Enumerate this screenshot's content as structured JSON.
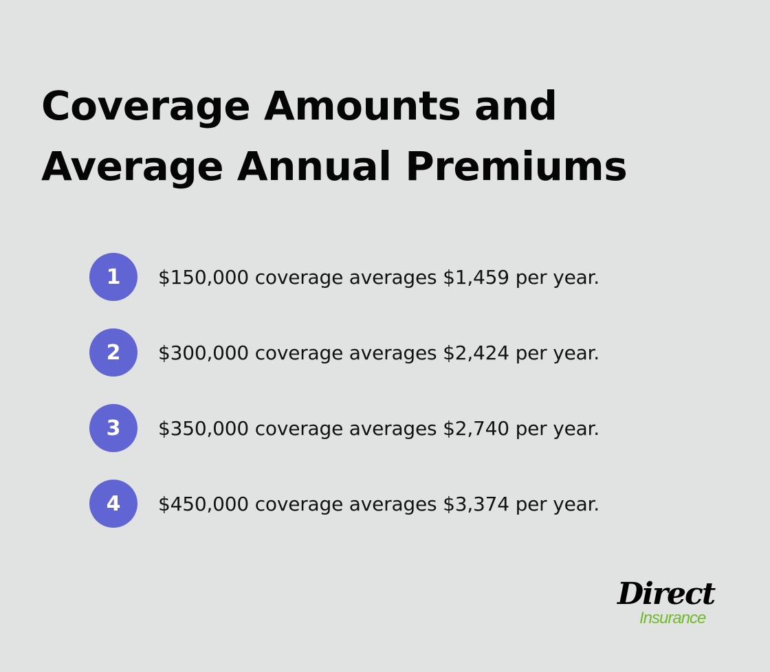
{
  "header": {
    "title": "Coverage Amounts and Average Annual Premiums"
  },
  "items": [
    {
      "number": "1",
      "text": "$150,000 coverage averages $1,459 per year."
    },
    {
      "number": "2",
      "text": "$300,000 coverage averages $2,424 per year."
    },
    {
      "number": "3",
      "text": "$350,000 coverage averages $2,740 per year."
    },
    {
      "number": "4",
      "text": "$450,000 coverage averages $3,374 per year."
    }
  ],
  "logo": {
    "brand_top": "Direct",
    "brand_bottom": "Insurance"
  },
  "colors": {
    "background": "#e1e3e2",
    "badge": "#6164d3",
    "logo_green": "#72b82e"
  }
}
